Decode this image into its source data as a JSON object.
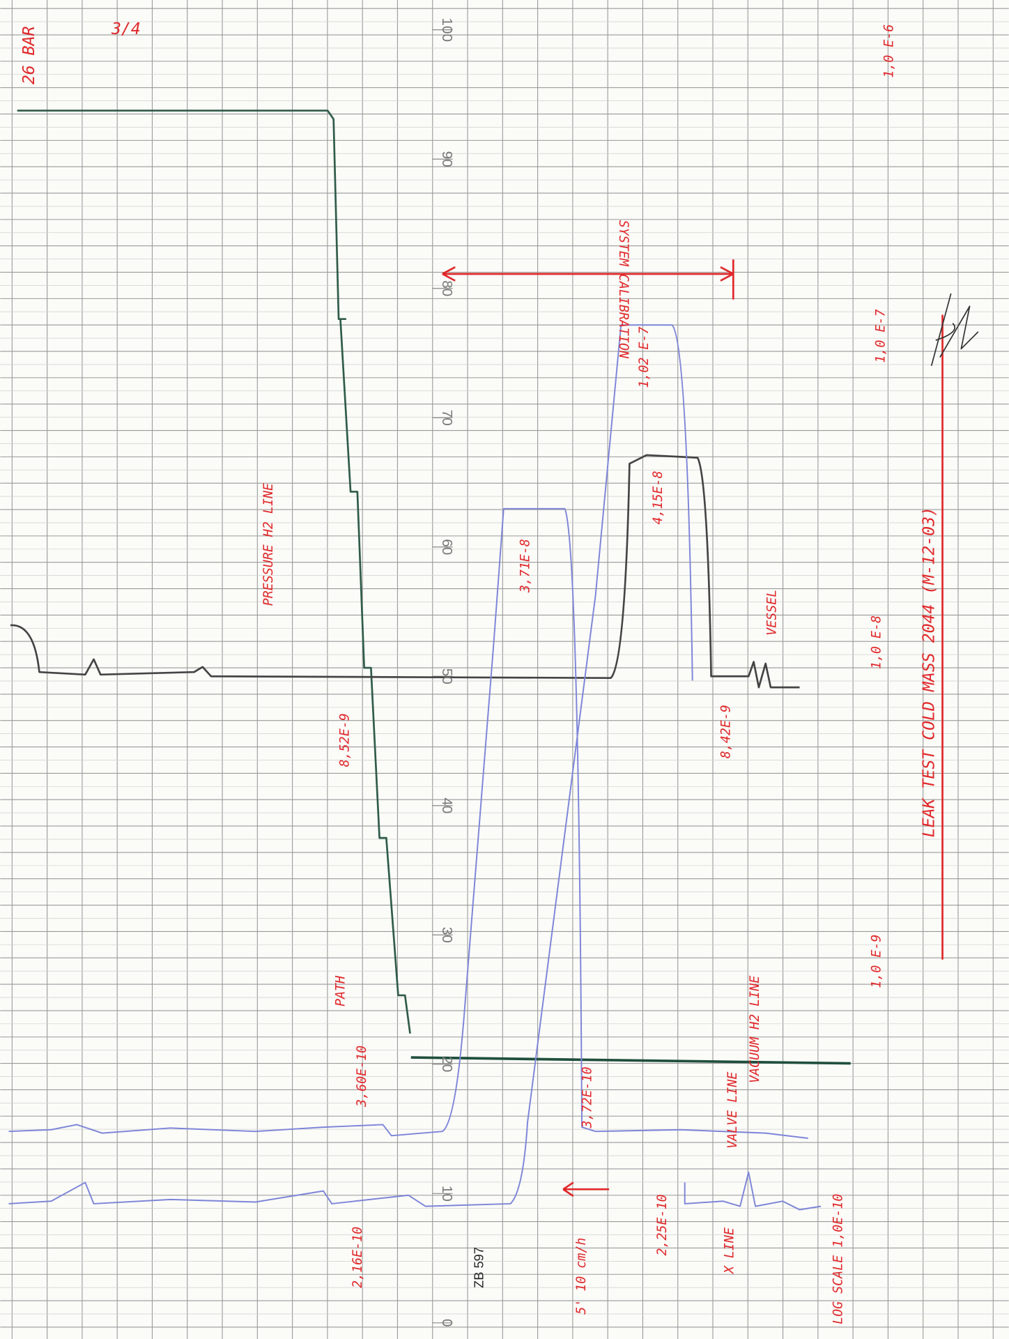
{
  "scale_labels": [
    0,
    10,
    20,
    30,
    40,
    50,
    60,
    70,
    80,
    90,
    100
  ],
  "annotations": [
    "26 BAR",
    "3/4",
    "1,0 E-6",
    "1,0 E-7",
    "1,0 E-8",
    "1,0 E-9",
    "LEAK TEST COLD MASS 2044 (M-12-03)",
    "PRESSURE H2 LINE",
    "8,52E-9",
    "PATH",
    "3,60E-10",
    "2,16E-10",
    "5' 10 cm/h",
    "3,72E-10",
    "2,25E-10",
    "X LINE",
    "VALVE LINE",
    "VACUUM H2 LINE",
    "VESSEL",
    "8,42E-9",
    "4,15E-8",
    "3,71E-8",
    "1,02 E-7",
    "SYSTEM CALIBRATION",
    "LOG SCALE 1,0E-10"
  ],
  "stamp": "ZB 597"
}
